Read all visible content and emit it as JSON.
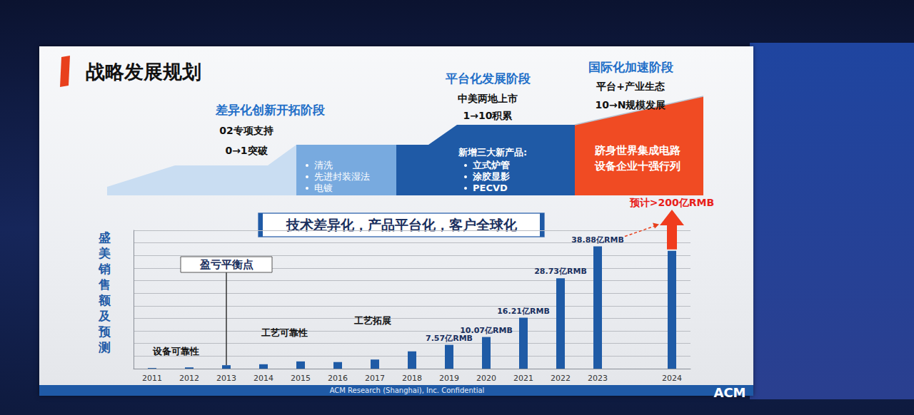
{
  "title": "战略发展规划",
  "stages": [
    {
      "name": "差异化创新开拓阶段",
      "lines": [
        "02专项支持",
        "0→1突破"
      ],
      "bullets": [
        "清洗",
        "先进封装湿法",
        "电镀"
      ]
    },
    {
      "name": "平台化发展阶段",
      "lines": [
        "中美两地上市",
        "1→10积累"
      ],
      "bullets_title": "新增三大新产品:",
      "bullets": [
        "立式炉管",
        "涂胶显影",
        "PECVD"
      ]
    },
    {
      "name": "国际化加速阶段",
      "lines": [
        "平台+产业生态",
        "10→N规模发展"
      ],
      "highlight": [
        "跻身世界集成电路",
        "设备企业十强行列"
      ]
    }
  ],
  "banner": "技术差异化，产品平台化，客户全球化",
  "footer": "ACM Research (Shanghai), Inc. Confidential",
  "logo": "ACM",
  "chart_data": {
    "type": "bar",
    "ylabel": "盛美销售额及预测",
    "categories": [
      "2011",
      "2012",
      "2013",
      "2014",
      "2015",
      "2016",
      "2017",
      "2018",
      "2019",
      "2020",
      "2021",
      "2022",
      "2023",
      null,
      "2024"
    ],
    "values": [
      0.2,
      0.4,
      1.1,
      1.4,
      2.3,
      2.1,
      2.9,
      5.5,
      7.57,
      10.07,
      16.21,
      28.73,
      38.88,
      null,
      37.5
    ],
    "value_labels": [
      null,
      null,
      null,
      null,
      null,
      null,
      null,
      null,
      "7.57亿RMB",
      "10.07亿RMB",
      "16.21亿RMB",
      "28.73亿RMB",
      "38.88亿RMB",
      null,
      null
    ],
    "color": "#1f5ba6",
    "ylim": [
      0,
      44
    ],
    "yticks": [
      0,
      4,
      8,
      12,
      16,
      20,
      24,
      28,
      32,
      36,
      40,
      44
    ],
    "grid": true,
    "data_labels": true,
    "tick_labels": "x",
    "annotations": [
      {
        "text": "盈亏平衡点",
        "category": "2013"
      },
      {
        "text": "设备可靠性"
      },
      {
        "text": "工艺可靠性"
      },
      {
        "text": "工艺拓展"
      }
    ],
    "forecast": {
      "category": "2024",
      "label": "预计>200亿RMB"
    }
  }
}
